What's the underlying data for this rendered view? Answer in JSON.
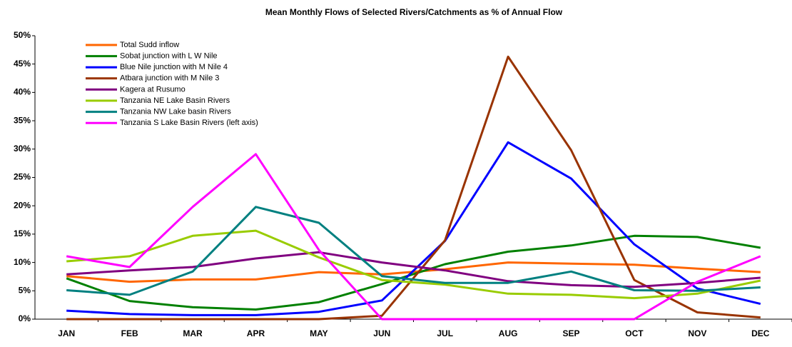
{
  "chart_data": {
    "type": "line",
    "title": "Mean Monthly Flows of Selected Rivers/Catchments as % of Annual Flow",
    "categories": [
      "JAN",
      "FEB",
      "MAR",
      "APR",
      "MAY",
      "JUN",
      "JUL",
      "AUG",
      "SEP",
      "OCT",
      "NOV",
      "DEC"
    ],
    "series": [
      {
        "name": "Total Sudd inflow",
        "color": "#ff6600",
        "values": [
          7.6,
          6.6,
          7.0,
          7.0,
          8.3,
          7.9,
          8.8,
          10.0,
          9.8,
          9.6,
          8.9,
          8.3
        ]
      },
      {
        "name": "Sobat junction with L W Nile",
        "color": "#008000",
        "values": [
          7.2,
          3.2,
          2.1,
          1.7,
          3.0,
          6.2,
          9.7,
          11.9,
          13.0,
          14.7,
          14.5,
          12.6
        ]
      },
      {
        "name": "Blue Nile junction with M Nile 4",
        "color": "#0000ff",
        "values": [
          1.5,
          0.9,
          0.7,
          0.7,
          1.3,
          3.3,
          13.8,
          31.2,
          24.8,
          13.2,
          5.4,
          2.7
        ]
      },
      {
        "name": "Atbara junction with M Nile 3",
        "color": "#993300",
        "values": [
          0,
          0,
          0,
          0,
          0,
          0.6,
          13.9,
          46.3,
          29.8,
          6.9,
          1.2,
          0.3
        ]
      },
      {
        "name": "Kagera at Rusumo",
        "color": "#800080",
        "values": [
          7.9,
          8.6,
          9.2,
          10.7,
          11.8,
          10.0,
          8.6,
          6.7,
          6.0,
          5.7,
          6.4,
          7.3
        ]
      },
      {
        "name": "Tanzania NE Lake Basin Rivers",
        "color": "#99cc00",
        "values": [
          10.2,
          11.1,
          14.7,
          15.6,
          10.9,
          6.9,
          6.1,
          4.5,
          4.3,
          3.7,
          4.5,
          6.8
        ]
      },
      {
        "name": "Tanzania NW Lake basin Rivers",
        "color": "#008080",
        "values": [
          5.1,
          4.3,
          8.4,
          19.8,
          17.0,
          7.6,
          6.4,
          6.4,
          8.4,
          5.1,
          5.0,
          5.6
        ]
      },
      {
        "name": "Tanzania S Lake Basin Rivers (left axis)",
        "color": "#ff00ff",
        "values": [
          11.1,
          9.2,
          19.8,
          29.1,
          12.2,
          0,
          0,
          0,
          0,
          0,
          6.6,
          11.1
        ]
      }
    ],
    "ylim": [
      0,
      50
    ],
    "yticks": [
      {
        "value": 0,
        "label": "0%"
      },
      {
        "value": 5,
        "label": "5%"
      },
      {
        "value": 10,
        "label": "10%"
      },
      {
        "value": 15,
        "label": "15%"
      },
      {
        "value": 20,
        "label": "20%"
      },
      {
        "value": 25,
        "label": "25%"
      },
      {
        "value": 30,
        "label": "30%"
      },
      {
        "value": 35,
        "label": "35%"
      },
      {
        "value": 40,
        "label": "40%"
      },
      {
        "value": 45,
        "label": "45%"
      },
      {
        "value": 50,
        "label": "50%"
      }
    ],
    "legend": "upper left"
  }
}
